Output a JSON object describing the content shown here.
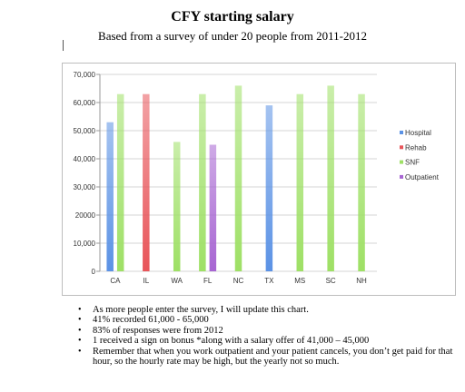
{
  "title": "CFY starting salary",
  "subtitle": "Based from a survey of under 20 people from 2011-2012",
  "colors": {
    "Hospital": "#5b92e5",
    "Rehab": "#e8555a",
    "SNF": "#9ee065",
    "Outpatient": "#a765d2"
  },
  "chart_data": {
    "type": "bar",
    "title": "",
    "xlabel": "",
    "ylabel": "",
    "ylim": [
      0,
      70000
    ],
    "yticks": [
      "70,000",
      "60,000",
      "50,000",
      "40,000",
      "30,000",
      "20000",
      "10,000",
      "0"
    ],
    "grid": true,
    "legend_position": "right",
    "categories": [
      "CA",
      "IL",
      "WA",
      "FL",
      "NC",
      "TX",
      "MS",
      "SC",
      "NH"
    ],
    "series": [
      {
        "name": "Hospital",
        "values": [
          53000,
          null,
          null,
          null,
          null,
          59000,
          null,
          null,
          null
        ]
      },
      {
        "name": "Rehab",
        "values": [
          null,
          63000,
          null,
          null,
          null,
          null,
          null,
          null,
          null
        ]
      },
      {
        "name": "SNF",
        "values": [
          63000,
          null,
          46000,
          63000,
          66000,
          null,
          63000,
          66000,
          63000
        ]
      },
      {
        "name": "Outpatient",
        "values": [
          null,
          null,
          null,
          45000,
          null,
          null,
          null,
          null,
          null
        ]
      }
    ]
  },
  "notes": [
    "As more people enter the survey, I will update this chart.",
    "41% recorded 61,000 - 65,000",
    "83% of responses were from 2012",
    "1 received a sign on bonus *along with a salary offer of 41,000 – 45,000",
    "Remember that when you work outpatient and your patient cancels, you don’t get paid for that hour, so the hourly rate may be high, but the yearly not so much."
  ]
}
